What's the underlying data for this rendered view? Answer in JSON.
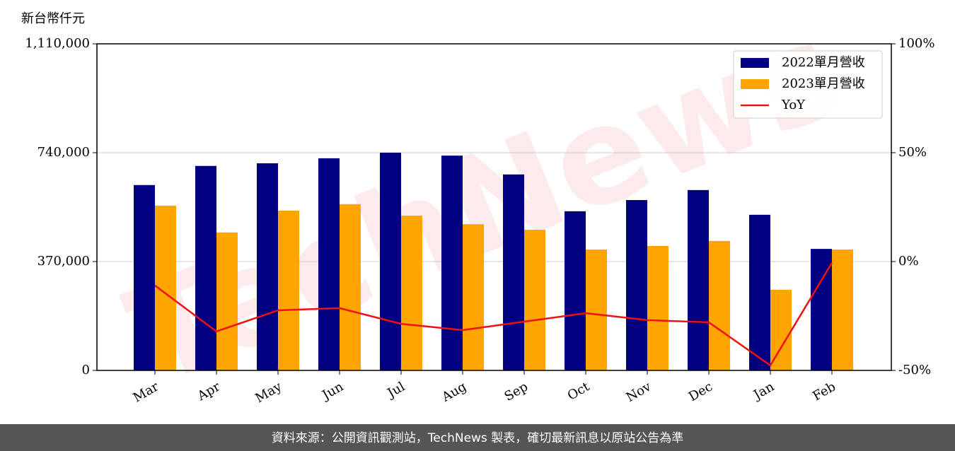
{
  "chart_data": {
    "type": "bar",
    "y_label": "新台幣仟元",
    "watermark": "TechNews",
    "categories": [
      "Mar",
      "Apr",
      "May",
      "Jun",
      "Jul",
      "Aug",
      "Sep",
      "Oct",
      "Nov",
      "Dec",
      "Jan",
      "Feb"
    ],
    "series": [
      {
        "name": "2022單月營收",
        "type": "bar",
        "color": "#000080",
        "values": [
          630000,
          695000,
          704000,
          721000,
          740000,
          730000,
          666000,
          541000,
          579000,
          613000,
          529000,
          413000
        ]
      },
      {
        "name": "2023單月營收",
        "type": "bar",
        "color": "#ffa500",
        "values": [
          560000,
          469000,
          543000,
          565000,
          526000,
          497000,
          478000,
          411000,
          423000,
          440000,
          274000,
          411000
        ]
      },
      {
        "name": "YoY",
        "type": "line",
        "axis": "y2",
        "color": "#ee1111",
        "values": [
          -11.0,
          -32.1,
          -22.4,
          -21.4,
          -28.6,
          -31.5,
          -27.6,
          -23.7,
          -26.9,
          -27.9,
          -47.7,
          -0.6
        ]
      }
    ],
    "ylim": [
      0,
      1110000
    ],
    "yticks": [
      0,
      {
        "value": 370000,
        "label": "370,000"
      },
      {
        "value": 740000,
        "label": "740,000"
      },
      {
        "value": 1110000,
        "label": "1,110,000"
      }
    ],
    "y2lim": [
      -50,
      100
    ],
    "y2ticks": [
      {
        "value": -50,
        "label": "-50%"
      },
      {
        "value": 0,
        "label": "0%"
      },
      {
        "value": 50,
        "label": "50%"
      },
      {
        "value": 100,
        "label": "100%"
      }
    ],
    "grid": true,
    "legend": "upper right",
    "source": "資料來源：公開資訊觀測站，TechNews 製表，確切最新訊息以原站公告為準"
  }
}
